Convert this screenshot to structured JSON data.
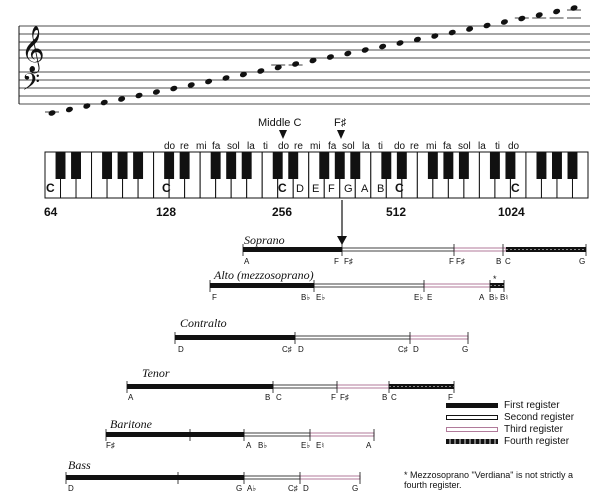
{
  "staff": {
    "treble_clef": "𝄞",
    "bass_clef": "𝄢",
    "note_count": 31
  },
  "keyboard": {
    "middle_c_label": "Middle C",
    "f_sharp_label": "F♯",
    "solfege_row1": [
      "do",
      "re",
      "mi",
      "fa",
      "sol",
      "la",
      "ti"
    ],
    "solfege_row2": [
      "do",
      "re",
      "mi",
      "fa",
      "sol",
      "la",
      "ti"
    ],
    "solfege_row3": [
      "do",
      "re",
      "mi",
      "fa",
      "sol",
      "la",
      "ti",
      "do"
    ],
    "c_labels": [
      "C",
      "C",
      "C",
      "C",
      "C"
    ],
    "middle_letters": [
      "D",
      "E",
      "F",
      "G",
      "A",
      "B"
    ],
    "frequencies": [
      "64",
      "128",
      "256",
      "512",
      "1024"
    ]
  },
  "voices": [
    {
      "name": "Soprano",
      "labels": [
        "A",
        "F",
        "F♯",
        "F",
        "F♯",
        "B",
        "C",
        "G"
      ]
    },
    {
      "name": "Alto (mezzosoprano)",
      "labels": [
        "F",
        "B♭",
        "E♭",
        "E♭",
        "E",
        "A",
        "B♭",
        "B♮"
      ],
      "star": "*"
    },
    {
      "name": "Contralto",
      "labels": [
        "D",
        "C♯",
        "D",
        "C♯",
        "D",
        "G"
      ]
    },
    {
      "name": "Tenor",
      "labels": [
        "A",
        "B",
        "C",
        "F",
        "F♯",
        "B",
        "C",
        "F"
      ]
    },
    {
      "name": "Baritone",
      "labels": [
        "F♯",
        "A",
        "B♭",
        "E♭",
        "E♮",
        "A"
      ]
    },
    {
      "name": "Bass",
      "labels": [
        "D",
        "G",
        "A♭",
        "C♯",
        "D",
        "G"
      ]
    }
  ],
  "legend": [
    {
      "label": "First register",
      "style": "first"
    },
    {
      "label": "Second register",
      "style": "second"
    },
    {
      "label": "Third register",
      "style": "third"
    },
    {
      "label": "Fourth register",
      "style": "fourth"
    }
  ],
  "note": "* Mezzosoprano \"Verdiana\" is not strictly a fourth register.",
  "colors": {
    "ink": "#111111",
    "pink": "#b07a9a",
    "key_black": "#111111",
    "key_white": "#ffffff"
  }
}
